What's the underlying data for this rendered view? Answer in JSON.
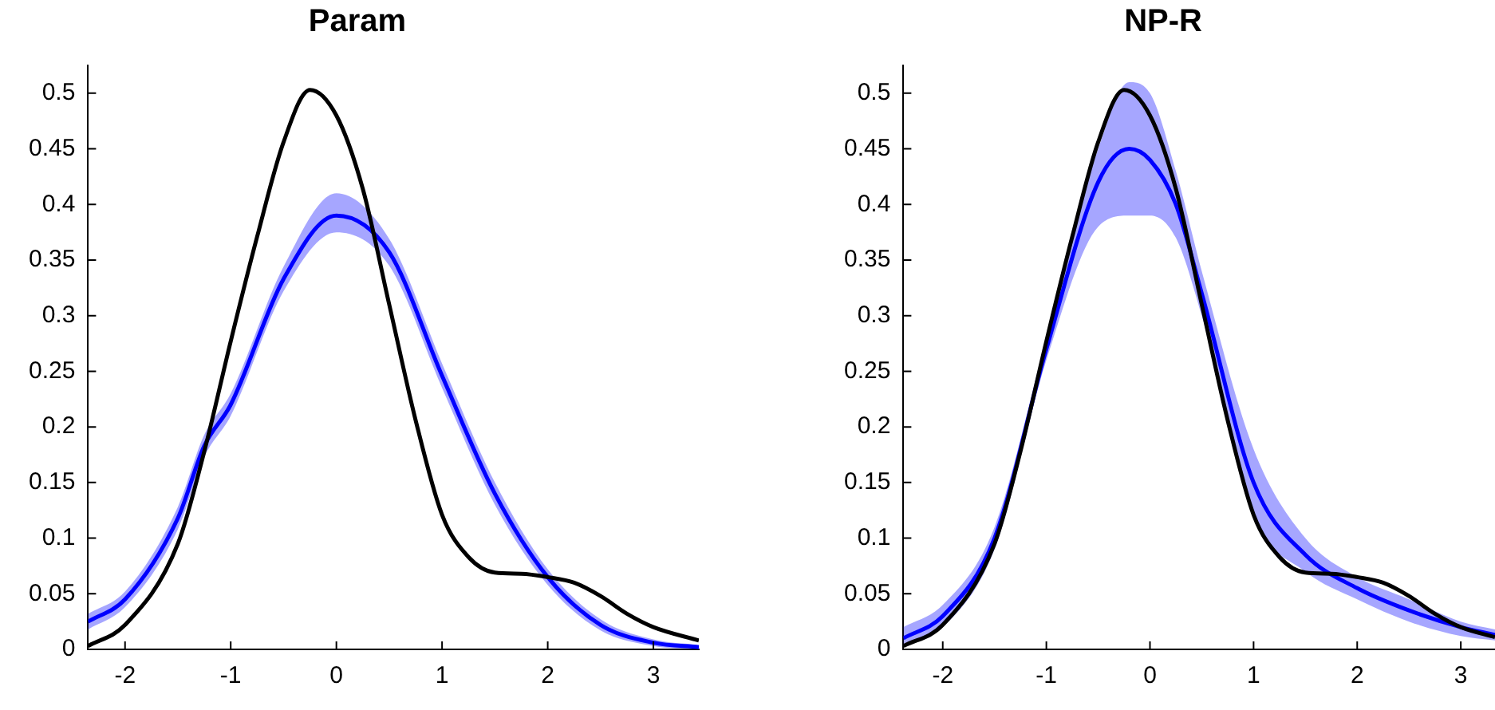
{
  "chart_data": [
    {
      "type": "line",
      "title": "Param",
      "xlim": [
        -2.35,
        3.43
      ],
      "xticks": [
        -2,
        -1,
        0,
        1,
        2,
        3
      ],
      "ylim": [
        0,
        0.525
      ],
      "yticks": [
        0,
        0.05,
        0.1,
        0.15,
        0.2,
        0.25,
        0.3,
        0.35,
        0.4,
        0.45,
        0.5
      ],
      "grid": false,
      "legend": false,
      "marker": "none",
      "line_style": "solid",
      "series": [
        {
          "color": "#0000ff",
          "x": [
            -2.35,
            -2,
            -1.5,
            -1.25,
            -1,
            -0.5,
            0,
            0.5,
            1,
            1.5,
            2,
            2.5,
            3,
            3.43
          ],
          "values": [
            0.025,
            0.045,
            0.118,
            0.183,
            0.22,
            0.333,
            0.39,
            0.357,
            0.246,
            0.14,
            0.065,
            0.022,
            0.006,
            0.002
          ],
          "lower": [
            0.018,
            0.038,
            0.108,
            0.173,
            0.21,
            0.322,
            0.375,
            0.345,
            0.235,
            0.13,
            0.058,
            0.017,
            0.003,
            0.0
          ],
          "upper": [
            0.032,
            0.052,
            0.128,
            0.193,
            0.23,
            0.344,
            0.41,
            0.369,
            0.257,
            0.15,
            0.072,
            0.027,
            0.009,
            0.004
          ]
        },
        {
          "color": "#000000",
          "x": [
            -2.35,
            -2,
            -1.5,
            -1.25,
            -1,
            -0.75,
            -0.5,
            -0.25,
            0,
            0.25,
            0.5,
            0.75,
            1,
            1.25,
            1.5,
            1.75,
            2,
            2.25,
            2.5,
            2.75,
            3,
            3.43
          ],
          "values": [
            0.003,
            0.022,
            0.095,
            0.178,
            0.277,
            0.371,
            0.456,
            0.503,
            0.48,
            0.414,
            0.31,
            0.206,
            0.121,
            0.083,
            0.069,
            0.068,
            0.065,
            0.06,
            0.048,
            0.032,
            0.02,
            0.008
          ]
        }
      ]
    },
    {
      "type": "line",
      "title": "NP-R",
      "xlim": [
        -2.38,
        3.33
      ],
      "xticks": [
        -2,
        -1,
        0,
        1,
        2,
        3
      ],
      "ylim": [
        0,
        0.525
      ],
      "yticks": [
        0,
        0.05,
        0.1,
        0.15,
        0.2,
        0.25,
        0.3,
        0.35,
        0.4,
        0.45,
        0.5
      ],
      "grid": false,
      "legend": false,
      "marker": "none",
      "line_style": "solid",
      "series": [
        {
          "color": "#0000ff",
          "x": [
            -2.38,
            -2,
            -1.5,
            -1,
            -0.5,
            -0.2,
            0,
            0.25,
            0.5,
            1,
            1.5,
            2,
            2.5,
            3,
            3.33
          ],
          "values": [
            0.01,
            0.03,
            0.1,
            0.27,
            0.42,
            0.45,
            0.44,
            0.4,
            0.32,
            0.15,
            0.085,
            0.055,
            0.035,
            0.02,
            0.013
          ],
          "lower": [
            0.005,
            0.02,
            0.09,
            0.26,
            0.38,
            0.39,
            0.39,
            0.37,
            0.3,
            0.12,
            0.07,
            0.045,
            0.025,
            0.012,
            0.008
          ],
          "upper": [
            0.02,
            0.04,
            0.11,
            0.28,
            0.45,
            0.51,
            0.5,
            0.43,
            0.34,
            0.18,
            0.1,
            0.065,
            0.045,
            0.025,
            0.018
          ]
        },
        {
          "color": "#000000",
          "x": [
            -2.38,
            -2,
            -1.5,
            -1.25,
            -1,
            -0.75,
            -0.5,
            -0.25,
            0,
            0.25,
            0.5,
            0.75,
            1,
            1.25,
            1.5,
            1.75,
            2,
            2.25,
            2.5,
            2.75,
            3,
            3.33
          ],
          "values": [
            0.003,
            0.022,
            0.095,
            0.178,
            0.277,
            0.371,
            0.456,
            0.503,
            0.48,
            0.414,
            0.31,
            0.206,
            0.121,
            0.083,
            0.069,
            0.068,
            0.065,
            0.06,
            0.048,
            0.032,
            0.02,
            0.011
          ]
        }
      ]
    }
  ]
}
